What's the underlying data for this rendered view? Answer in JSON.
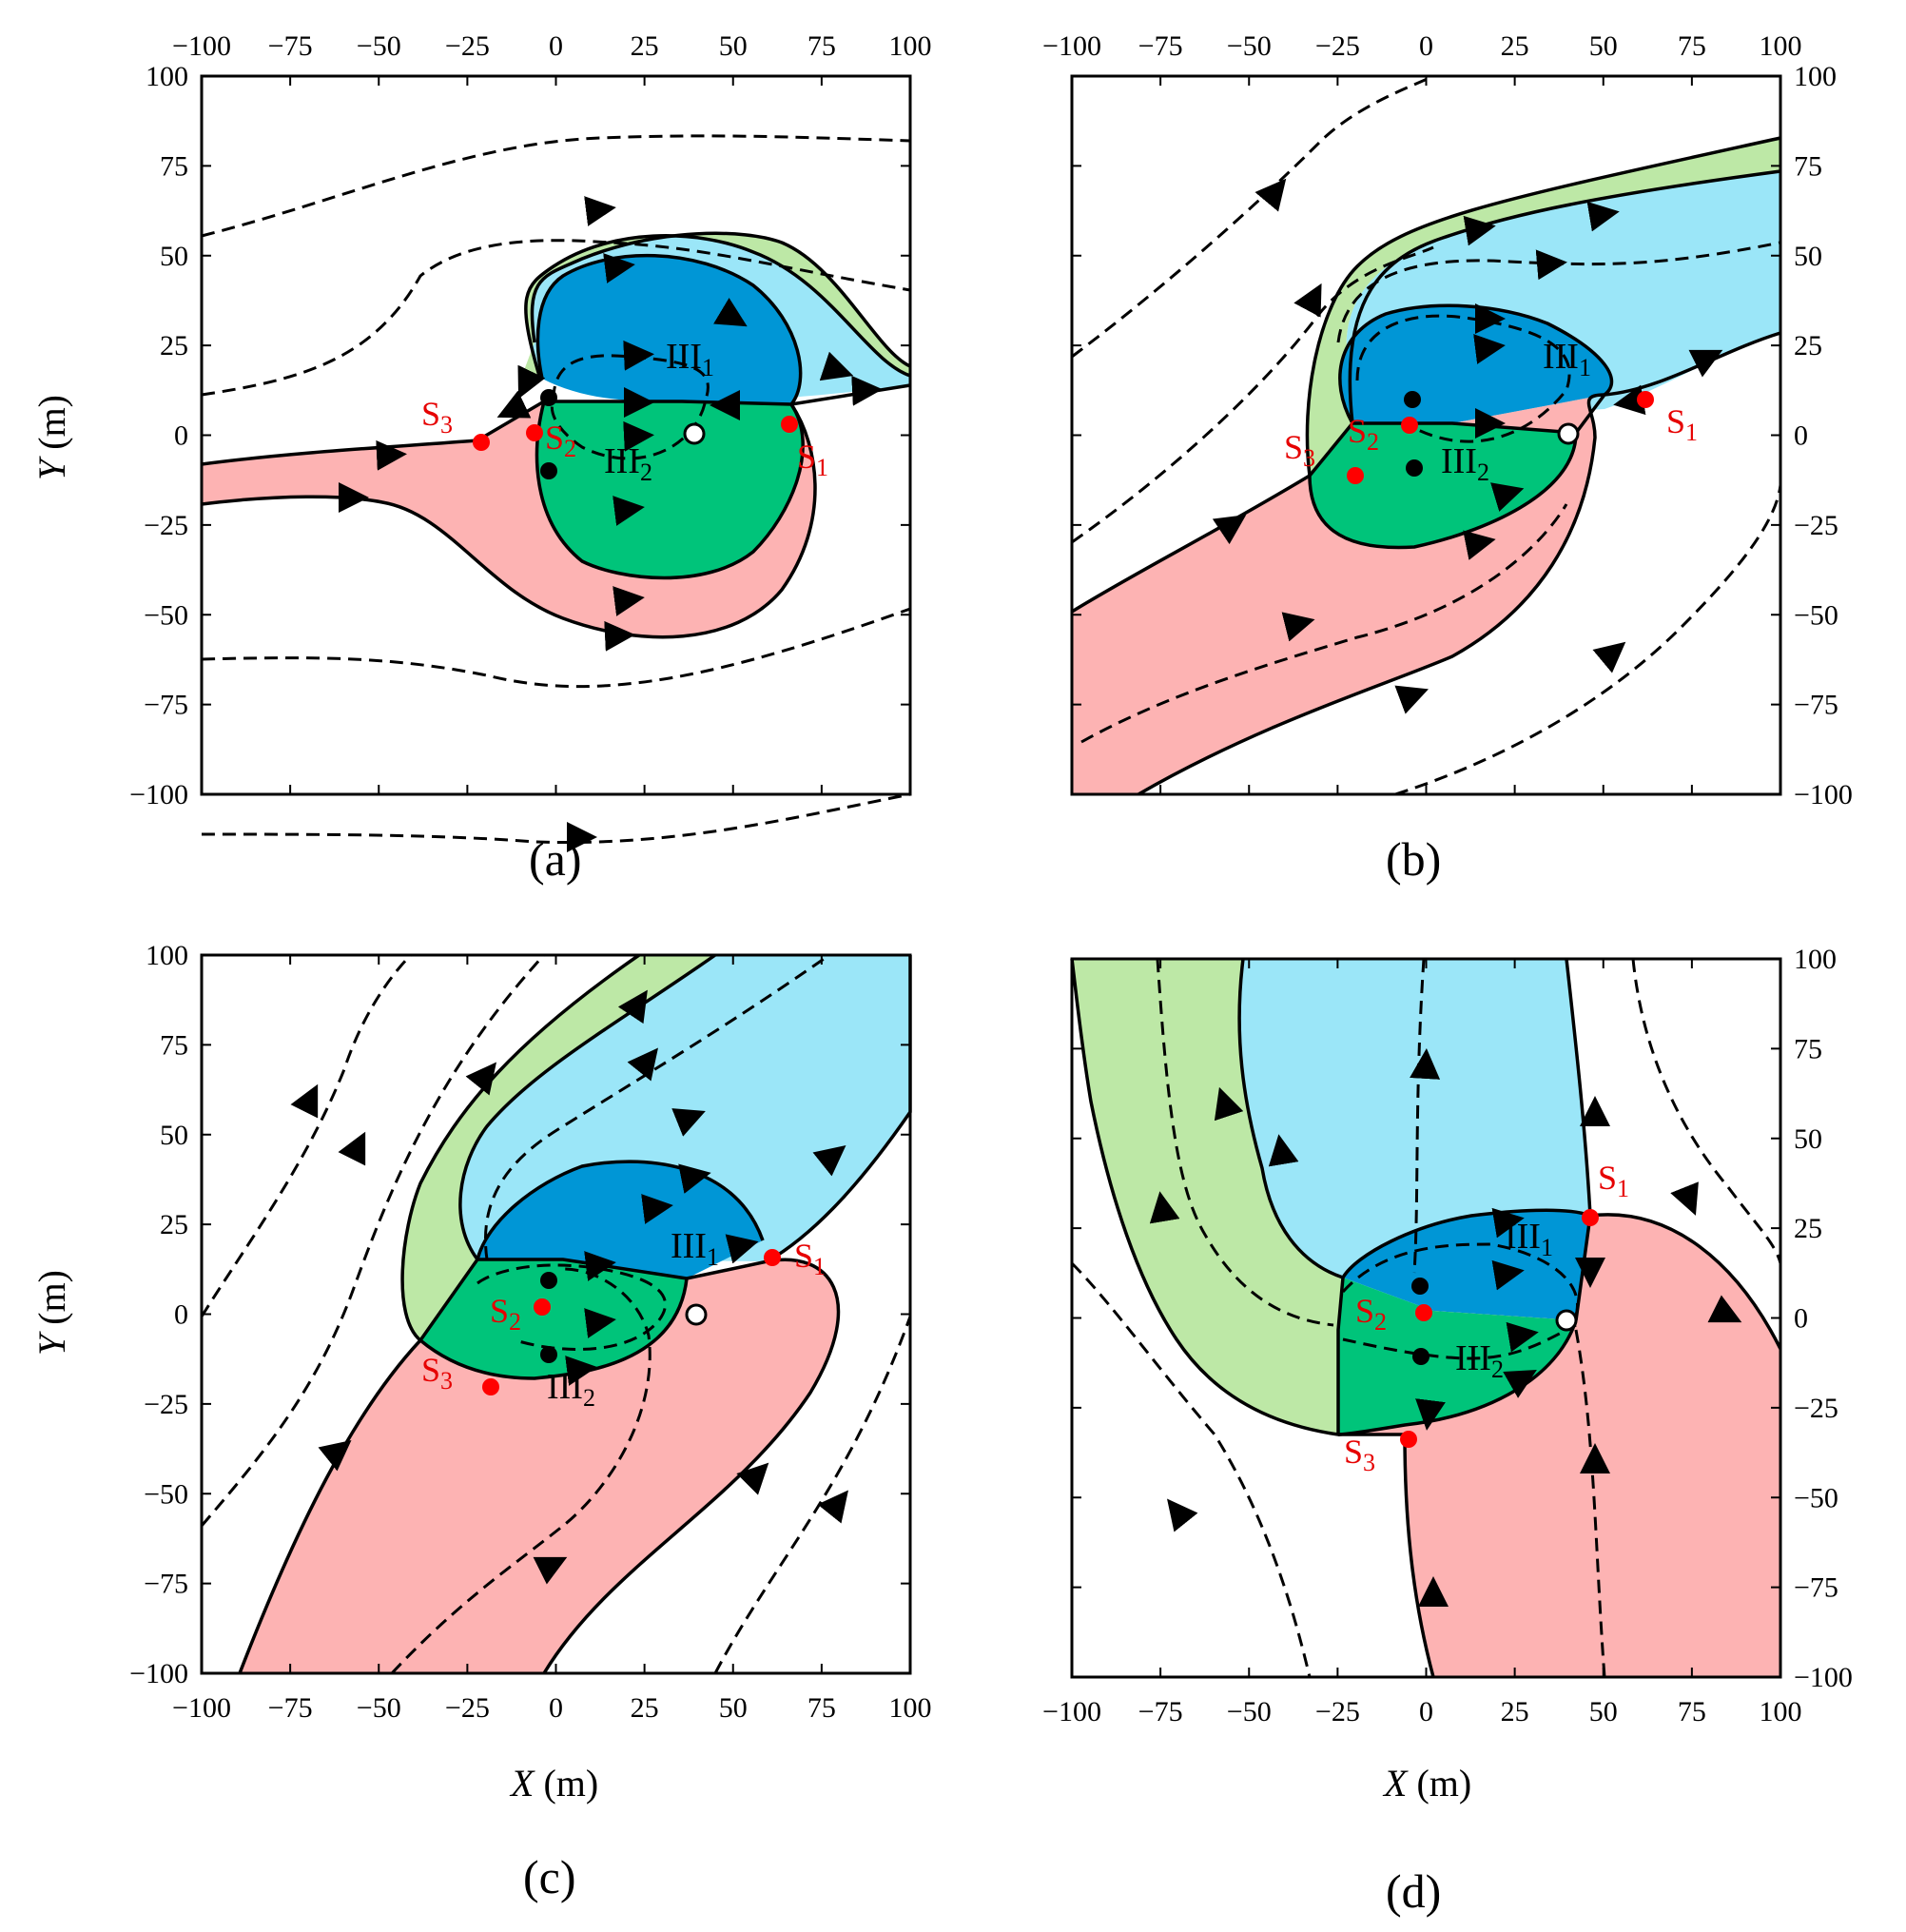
{
  "colors": {
    "light_blue": "#9be6f8",
    "dark_blue": "#0096d6",
    "green_light": "#bde8a6",
    "green_dark": "#00c47a",
    "pink": "#fdb3b3",
    "red_point": "#ff0000",
    "label_red": "#e60000",
    "axis": "#000000"
  },
  "axes": {
    "x_ticks": [
      "−100",
      "−75",
      "−50",
      "−25",
      "0",
      "25",
      "50",
      "75",
      "100"
    ],
    "y_ticks": [
      "100",
      "75",
      "50",
      "25",
      "0",
      "−25",
      "−50",
      "−75",
      "−100"
    ],
    "x_label": "X",
    "y_label": "Y",
    "unit": "(m)"
  },
  "panels": [
    {
      "label": "(a)"
    },
    {
      "label": "(b)"
    },
    {
      "label": "(c)"
    },
    {
      "label": "(d)"
    }
  ],
  "points": {
    "s_main": "S",
    "s1_sub": "1",
    "s2_sub": "2",
    "s3_sub": "3"
  },
  "regions": {
    "iii_main": "III",
    "iii1_sub": "1",
    "iii2_sub": "2"
  }
}
